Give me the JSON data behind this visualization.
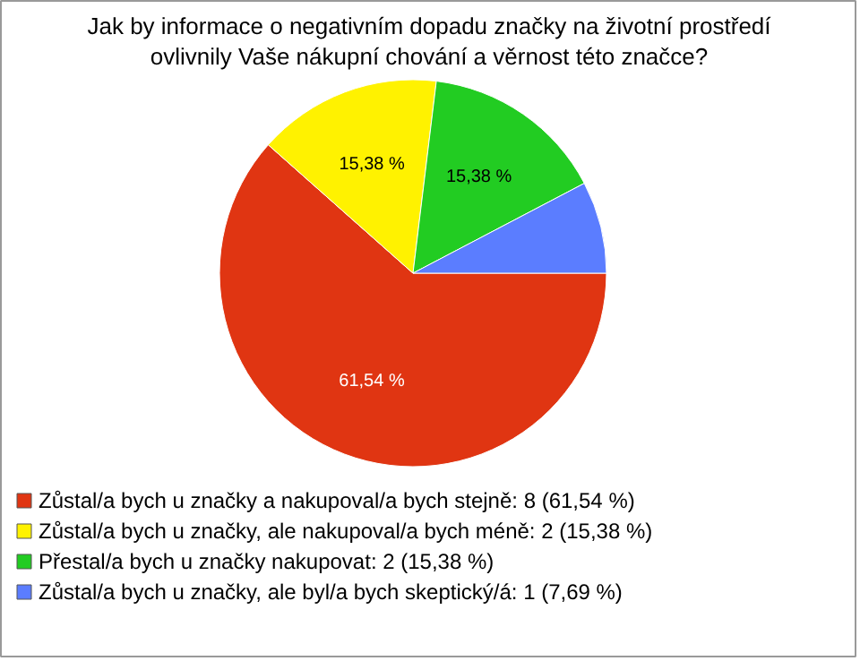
{
  "chart_data": {
    "type": "pie",
    "title": "Jak by informace o negativním dopadu značky na životní prostředí\novlivnily Vaše nákupní chování a věrnost této značce?",
    "categories": [
      "Zůstal/a bych u značky a nakupoval/a bych stejně: 8 (61,54 %)",
      "Zůstal/a bych u značky, ale nakupoval/a bych méně: 2 (15,38 %)",
      "Přestal/a bych u značky nakupovat: 2 (15,38 %)",
      "Zůstal/a bych u značky, ale byl/a bych skeptický/á: 1 (7,69 %)"
    ],
    "values": [
      61.54,
      15.38,
      15.38,
      7.69
    ],
    "colors": [
      "#e03512",
      "#fff200",
      "#22cc22",
      "#5b7dff"
    ],
    "value_labels": [
      "61,54 %",
      "15,38 %",
      "15,38 %",
      null
    ],
    "legend": "bottom"
  }
}
